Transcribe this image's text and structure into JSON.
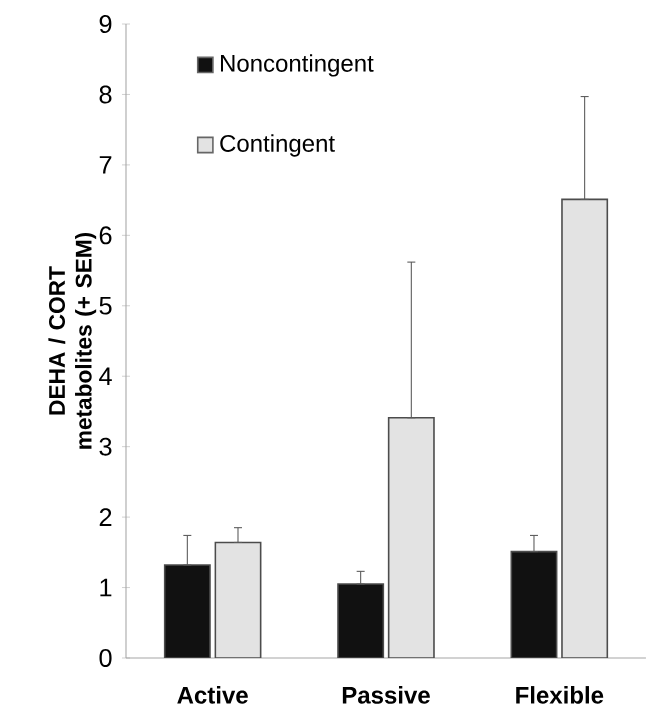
{
  "chart_data": {
    "type": "bar",
    "ylabel": "DEHA / CORT metabolites (+ SEM)",
    "categories": [
      "Active",
      "Passive",
      "Flexible"
    ],
    "series": [
      {
        "name": "Noncontingent",
        "color": "#111111",
        "values": [
          1.32,
          1.05,
          1.51
        ],
        "errors": [
          [
            1.32,
            1.74
          ],
          [
            1.05,
            1.23
          ],
          [
            1.51,
            1.74
          ]
        ]
      },
      {
        "name": "Contingent",
        "color": "#e3e3e3",
        "values": [
          1.64,
          3.41,
          6.51
        ],
        "errors": [
          [
            1.64,
            1.85
          ],
          [
            3.41,
            5.62
          ],
          [
            6.51,
            7.97
          ]
        ]
      }
    ],
    "ylim": [
      0,
      9
    ],
    "yticks": [
      0,
      1,
      2,
      3,
      4,
      5,
      6,
      7,
      8,
      9
    ],
    "grid": false,
    "legend": "top left"
  }
}
